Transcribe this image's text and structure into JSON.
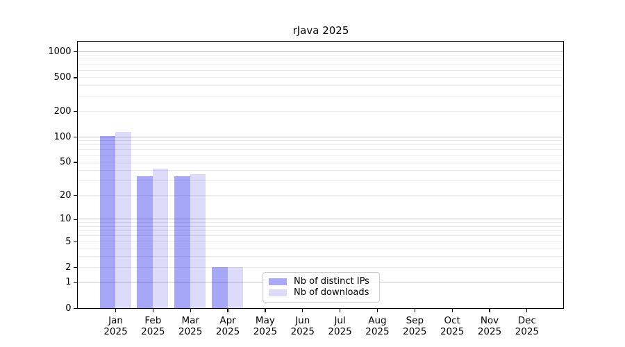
{
  "chart_data": {
    "type": "bar",
    "title": "rJava 2025",
    "xlabel": "",
    "ylabel": "",
    "y_scale": "log10(1+x)",
    "ylim": [
      0,
      1300
    ],
    "y_ticks": [
      0,
      1,
      2,
      5,
      10,
      20,
      50,
      100,
      200,
      500,
      1000
    ],
    "grid": true,
    "grid_major_values": [
      1,
      10,
      100,
      1000
    ],
    "categories": [
      "Jan",
      "Feb",
      "Mar",
      "Apr",
      "May",
      "Jun",
      "Jul",
      "Aug",
      "Sep",
      "Oct",
      "Nov",
      "Dec"
    ],
    "year_label": "2025",
    "series": [
      {
        "name": "Nb of distinct IPs",
        "color": "rgba(0,0,235,0.345)",
        "swatch_color": "#a9a9f8",
        "values": [
          103,
          34,
          34,
          2,
          0,
          0,
          0,
          0,
          0,
          0,
          0,
          0
        ]
      },
      {
        "name": "Nb of downloads",
        "color": "rgba(0,0,215,0.137)",
        "swatch_color": "#dbdbf8",
        "values": [
          115,
          42,
          36,
          2,
          0,
          0,
          0,
          0,
          0,
          0,
          0,
          0
        ]
      }
    ],
    "legend_position": "lower center-right inside plot"
  }
}
